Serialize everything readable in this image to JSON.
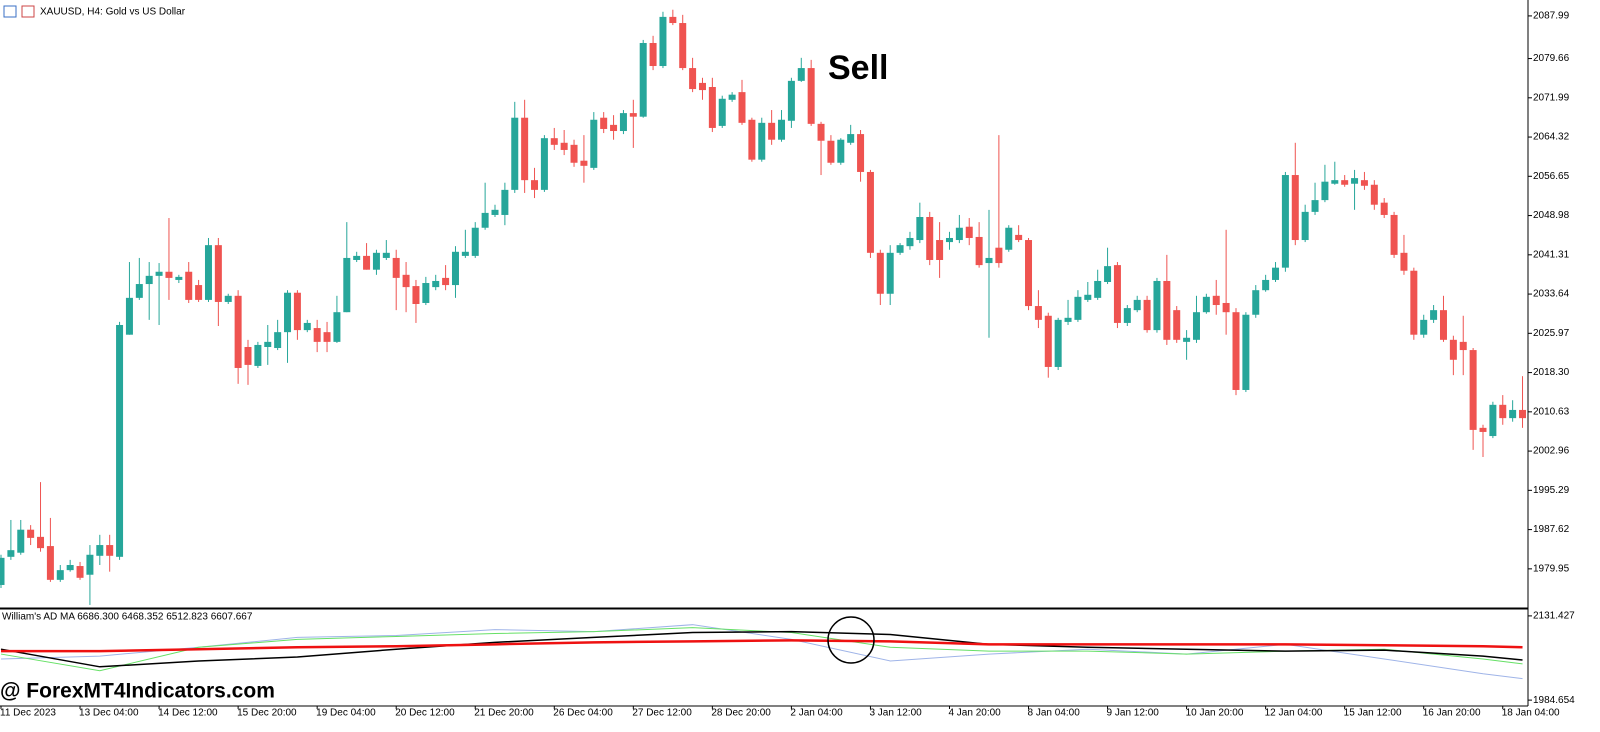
{
  "chart_data": [
    {
      "type": "candlestick",
      "title": "XAUUSD, H4:  Gold vs US Dollar",
      "annotations": [
        "Sell",
        "@ ForexMT4Indicators.com"
      ],
      "up_color": "#26a69a",
      "down_color": "#ef5350",
      "ylim": [
        1972.3,
        2091.1
      ],
      "yticks": [
        2087.99,
        2079.66,
        2071.99,
        2064.32,
        2056.65,
        2048.98,
        2041.31,
        2033.64,
        2025.97,
        {
          "value": 2018.3,
          "label": "2018.30"
        },
        2010.63,
        2002.96,
        1995.29,
        1987.62,
        1979.95
      ],
      "categories": [
        "11 Dec 2023",
        null,
        null,
        null,
        null,
        null,
        null,
        null,
        "13 Dec 04:00",
        null,
        null,
        null,
        null,
        null,
        null,
        null,
        "14 Dec 12:00",
        null,
        null,
        null,
        null,
        null,
        null,
        null,
        "15 Dec 20:00",
        null,
        null,
        null,
        null,
        null,
        null,
        null,
        "19 Dec 04:00",
        null,
        null,
        null,
        null,
        null,
        null,
        null,
        "20 Dec 12:00",
        null,
        null,
        null,
        null,
        null,
        null,
        null,
        "21 Dec 20:00",
        null,
        null,
        null,
        null,
        null,
        null,
        null,
        "26 Dec 04:00",
        null,
        null,
        null,
        null,
        null,
        null,
        null,
        "27 Dec 12:00",
        null,
        null,
        null,
        null,
        null,
        null,
        null,
        "28 Dec 20:00",
        null,
        null,
        null,
        null,
        null,
        null,
        null,
        "2 Jan 04:00",
        null,
        null,
        null,
        null,
        null,
        null,
        null,
        "3 Jan 12:00",
        null,
        null,
        null,
        null,
        null,
        null,
        null,
        "4 Jan 20:00",
        null,
        null,
        null,
        null,
        null,
        null,
        null,
        "8 Jan 04:00",
        null,
        null,
        null,
        null,
        null,
        null,
        null,
        "9 Jan 12:00",
        null,
        null,
        null,
        null,
        null,
        null,
        null,
        "10 Jan 20:00",
        null,
        null,
        null,
        null,
        null,
        null,
        null,
        "12 Jan 04:00",
        null,
        null,
        null,
        null,
        null,
        null,
        null,
        "15 Jan 12:00",
        null,
        null,
        null,
        null,
        null,
        null,
        null,
        "16 Jan 20:00",
        null,
        null,
        null,
        null,
        null,
        null,
        null,
        "18 Jan 04:00",
        null,
        null
      ],
      "open": [
        1976.8,
        1982.3,
        1983.1,
        1987.6,
        1986.2,
        1984.4,
        1977.8,
        1979.7,
        1980.5,
        1978.8,
        1982.5,
        1984.6,
        1982.3,
        2025.7,
        2032.9,
        2035.6,
        2037.2,
        2038.0,
        2036.4,
        2038.0,
        2035.4,
        2032.5,
        2043.2,
        2032.1,
        2033.3,
        2023.3,
        2019.6,
        2023.3,
        2023.1,
        2026.2,
        2033.9,
        2026.6,
        2027.0,
        2026.2,
        2024.3,
        2030.1,
        2040.3,
        2041.1,
        2038.4,
        2040.7,
        2040.7,
        2037.4,
        2035.2,
        2031.9,
        2035.0,
        2036.8,
        2035.4,
        2041.1,
        2041.1,
        2046.6,
        2049.1,
        2049.1,
        2054.0,
        2068.1,
        2055.9,
        2054.0,
        2064.1,
        2063.2,
        2062.8,
        2059.7,
        2058.3,
        2068.1,
        2066.7,
        2065.5,
        2069.0,
        2068.3,
        2082.7,
        2078.2,
        2087.8,
        2086.6,
        2077.8,
        2074.9,
        2074.1,
        2066.5,
        2071.6,
        2073.1,
        2067.7,
        2059.9,
        2067.1,
        2063.8,
        2067.5,
        2075.3,
        2077.8,
        2066.9,
        2063.6,
        2059.3,
        2063.2,
        2064.9,
        2057.5,
        2041.7,
        2033.7,
        2041.7,
        2043.0,
        2044.2,
        2048.7,
        2044.2,
        2043.8,
        2044.2,
        2046.8,
        2044.8,
        2039.7,
        2042.7,
        2042.3,
        2045.2,
        2044.2,
        2031.3,
        2029.4,
        2019.4,
        2028.2,
        2028.6,
        2032.5,
        2032.9,
        2036.0,
        2039.3,
        2028.0,
        2030.5,
        2032.5,
        2026.6,
        2036.2,
        2030.5,
        2024.3,
        2024.7,
        2030.1,
        2033.3,
        2031.9,
        2030.1,
        2014.9,
        2029.6,
        2034.4,
        2036.4,
        2038.8,
        2056.9,
        2044.2,
        2049.7,
        2052.0,
        2055.2,
        2055.9,
        2055.2,
        2055.9,
        2055.0,
        2051.5,
        2049.1,
        2041.7,
        2038.2,
        2025.7,
        2028.6,
        2030.5,
        2024.7,
        2024.3,
        2022.7,
        2007.5,
        2005.9,
        2012.0,
        2009.4,
        2011.0
      ],
      "high": [
        1982.7,
        1989.5,
        1989.5,
        1988.5,
        1996.9,
        1989.9,
        1980.7,
        1981.7,
        1981.3,
        1984.6,
        1986.6,
        1986.6,
        2028.2,
        2039.9,
        2040.7,
        2039.9,
        2039.7,
        2048.5,
        2037.4,
        2039.9,
        2036.4,
        2044.6,
        2044.6,
        2033.7,
        2034.4,
        2024.7,
        2024.3,
        2027.6,
        2028.6,
        2034.4,
        2034.4,
        2028.6,
        2028.6,
        2028.2,
        2033.3,
        2047.7,
        2041.9,
        2043.6,
        2042.3,
        2044.2,
        2042.3,
        2039.9,
        2036.4,
        2037.0,
        2037.4,
        2039.3,
        2043.0,
        2046.2,
        2047.7,
        2055.4,
        2051.1,
        2055.4,
        2071.2,
        2071.6,
        2058.3,
        2064.7,
        2066.1,
        2065.7,
        2063.8,
        2064.7,
        2069.2,
        2069.2,
        2068.6,
        2069.6,
        2071.6,
        2083.3,
        2084.1,
        2088.8,
        2089.2,
        2088.2,
        2079.8,
        2075.9,
        2075.9,
        2072.4,
        2073.1,
        2075.5,
        2068.1,
        2068.1,
        2069.6,
        2069.6,
        2075.9,
        2079.8,
        2079.4,
        2067.3,
        2064.7,
        2064.1,
        2066.7,
        2065.7,
        2057.9,
        2042.3,
        2043.2,
        2043.6,
        2045.8,
        2051.5,
        2049.7,
        2047.7,
        2045.8,
        2049.1,
        2048.5,
        2047.7,
        2050.1,
        2064.7,
        2047.1,
        2047.1,
        2044.6,
        2034.4,
        2030.0,
        2029.0,
        2032.5,
        2034.4,
        2036.0,
        2038.4,
        2042.7,
        2039.9,
        2031.5,
        2033.3,
        2033.3,
        2036.8,
        2041.3,
        2031.3,
        2026.6,
        2033.3,
        2033.7,
        2036.4,
        2046.2,
        2030.9,
        2030.1,
        2035.4,
        2037.4,
        2039.9,
        2057.5,
        2063.2,
        2051.1,
        2055.4,
        2058.9,
        2059.5,
        2056.9,
        2057.9,
        2057.5,
        2055.9,
        2052.4,
        2049.7,
        2045.2,
        2038.8,
        2029.6,
        2031.5,
        2033.3,
        2025.5,
        2029.4,
        2023.1,
        2008.1,
        2012.6,
        2013.9,
        2012.9,
        2017.6
      ],
      "low": [
        1976.2,
        1981.7,
        1982.7,
        1984.6,
        1983.3,
        1977.4,
        1977.4,
        1979.4,
        1977.8,
        1972.9,
        1980.7,
        1979.4,
        1981.7,
        2025.7,
        2032.5,
        2028.6,
        2027.6,
        2032.5,
        2035.8,
        2031.9,
        2032.1,
        2032.1,
        2027.4,
        2031.7,
        2016.1,
        2015.9,
        2019.2,
        2019.8,
        2022.7,
        2020.2,
        2024.7,
        2026.2,
        2022.3,
        2022.3,
        2024.1,
        2030.1,
        2039.9,
        2038.4,
        2037.4,
        2040.3,
        2030.5,
        2030.1,
        2028.0,
        2031.5,
        2034.4,
        2034.4,
        2032.9,
        2040.7,
        2040.7,
        2046.2,
        2048.7,
        2047.1,
        2053.4,
        2053.4,
        2052.4,
        2053.6,
        2061.8,
        2060.8,
        2058.5,
        2055.4,
        2057.9,
        2065.1,
        2063.8,
        2064.9,
        2062.2,
        2068.1,
        2077.4,
        2077.8,
        2086.2,
        2077.4,
        2073.1,
        2071.6,
        2065.3,
        2066.1,
        2071.2,
        2066.7,
        2059.5,
        2059.5,
        2062.8,
        2063.4,
        2066.1,
        2075.1,
        2066.5,
        2056.9,
        2058.9,
        2058.9,
        2062.8,
        2055.6,
        2040.7,
        2031.5,
        2031.5,
        2041.3,
        2042.3,
        2043.6,
        2039.3,
        2036.8,
        2042.3,
        2043.6,
        2043.2,
        2038.8,
        2025.1,
        2038.8,
        2041.9,
        2043.8,
        2030.5,
        2027.0,
        2017.3,
        2018.8,
        2027.6,
        2028.2,
        2032.1,
        2032.5,
        2035.6,
        2027.0,
        2027.4,
        2030.1,
        2026.1,
        2026.1,
        2023.7,
        2024.1,
        2020.8,
        2024.1,
        2029.8,
        2029.6,
        2025.7,
        2013.9,
        2014.5,
        2029.0,
        2034.1,
        2036.0,
        2038.0,
        2043.2,
        2043.8,
        2049.1,
        2051.6,
        2055.0,
        2054.6,
        2050.1,
        2054.0,
        2050.1,
        2048.5,
        2040.7,
        2037.4,
        2024.7,
        2025.1,
        2028.0,
        2024.3,
        2017.8,
        2017.8,
        2003.2,
        2001.8,
        2005.5,
        2008.1,
        2008.7,
        2007.5
      ],
      "close": [
        1982.1,
        1983.6,
        1987.6,
        1986.0,
        1984.0,
        1977.8,
        1979.7,
        1980.7,
        1978.2,
        1982.7,
        1984.6,
        1982.5,
        2027.6,
        2032.9,
        2035.6,
        2037.2,
        2038.0,
        2036.8,
        2037.0,
        2032.5,
        2032.5,
        2043.2,
        2032.1,
        2033.3,
        2019.2,
        2019.8,
        2023.7,
        2024.3,
        2026.2,
        2033.9,
        2026.6,
        2028.0,
        2024.3,
        2024.3,
        2030.1,
        2040.7,
        2041.1,
        2038.4,
        2041.7,
        2041.7,
        2036.8,
        2035.0,
        2031.7,
        2035.8,
        2036.2,
        2035.4,
        2041.9,
        2041.9,
        2046.6,
        2049.5,
        2050.1,
        2054.0,
        2068.1,
        2055.9,
        2054.0,
        2064.1,
        2062.8,
        2061.8,
        2059.3,
        2058.7,
        2067.7,
        2065.9,
        2065.5,
        2069.0,
        2068.3,
        2082.7,
        2078.2,
        2087.8,
        2086.6,
        2077.8,
        2073.7,
        2073.5,
        2066.1,
        2071.8,
        2072.6,
        2067.1,
        2059.9,
        2067.1,
        2063.8,
        2067.7,
        2075.3,
        2077.8,
        2066.9,
        2063.6,
        2059.3,
        2063.8,
        2064.9,
        2057.5,
        2041.7,
        2033.7,
        2041.7,
        2043.2,
        2044.6,
        2048.7,
        2040.3,
        2040.3,
        2044.6,
        2046.6,
        2044.6,
        2039.3,
        2040.7,
        2039.7,
        2046.6,
        2044.2,
        2031.3,
        2028.6,
        2019.4,
        2028.6,
        2029.0,
        2033.1,
        2033.5,
        2036.2,
        2039.1,
        2028.0,
        2030.9,
        2032.5,
        2026.6,
        2036.2,
        2024.7,
        2024.7,
        2025.1,
        2030.1,
        2033.1,
        2031.5,
        2030.1,
        2014.9,
        2029.6,
        2034.4,
        2036.4,
        2038.8,
        2056.9,
        2044.2,
        2049.7,
        2052.0,
        2055.6,
        2055.9,
        2055.0,
        2056.3,
        2054.8,
        2051.1,
        2049.1,
        2041.3,
        2038.2,
        2025.7,
        2028.6,
        2030.5,
        2024.7,
        2020.8,
        2022.7,
        2007.1,
        2006.7,
        2012.0,
        2009.4,
        2011.0,
        2009.4
      ]
    },
    {
      "type": "line",
      "title": "William's AD MA 6686.300 6468.352 6512.823 6607.667",
      "ylim": [
        1974.4,
        2141.7
      ],
      "yticks": [
        2131.427,
        1984.654
      ],
      "x": [
        0,
        10,
        20,
        30,
        40,
        50,
        60,
        70,
        80,
        90,
        100,
        110,
        120,
        130,
        140,
        150,
        154
      ],
      "series": [
        {
          "color": "#9fb4e8",
          "values": [
            2056.3,
            2061.4,
            2076.8,
            2093.9,
            2097.3,
            2107.5,
            2104.1,
            2116.1,
            2090.5,
            2052.9,
            2064.9,
            2073.4,
            2064.9,
            2081.9,
            2056.3,
            2030.7,
            2022.2
          ]
        },
        {
          "color": "#66e066",
          "values": [
            2064.9,
            2035.9,
            2076.8,
            2090.5,
            2095.6,
            2100.7,
            2104.1,
            2110.9,
            2102.4,
            2076.8,
            2070.0,
            2070.0,
            2064.9,
            2070.0,
            2073.4,
            2056.3,
            2047.8
          ]
        },
        {
          "color": "#000000",
          "values": [
            2073.4,
            2042.7,
            2052.9,
            2059.7,
            2073.4,
            2085.3,
            2093.9,
            2102.4,
            2104.1,
            2099.0,
            2081.9,
            2076.8,
            2073.4,
            2070.0,
            2071.7,
            2061.4,
            2054.6
          ]
        },
        {
          "color": "#ee1111",
          "values": [
            2070.0,
            2070.0,
            2073.4,
            2076.8,
            2078.5,
            2081.9,
            2085.3,
            2087.1,
            2088.8,
            2087.1,
            2081.9,
            2081.9,
            2081.9,
            2081.9,
            2080.2,
            2078.5,
            2076.8
          ]
        }
      ]
    }
  ]
}
